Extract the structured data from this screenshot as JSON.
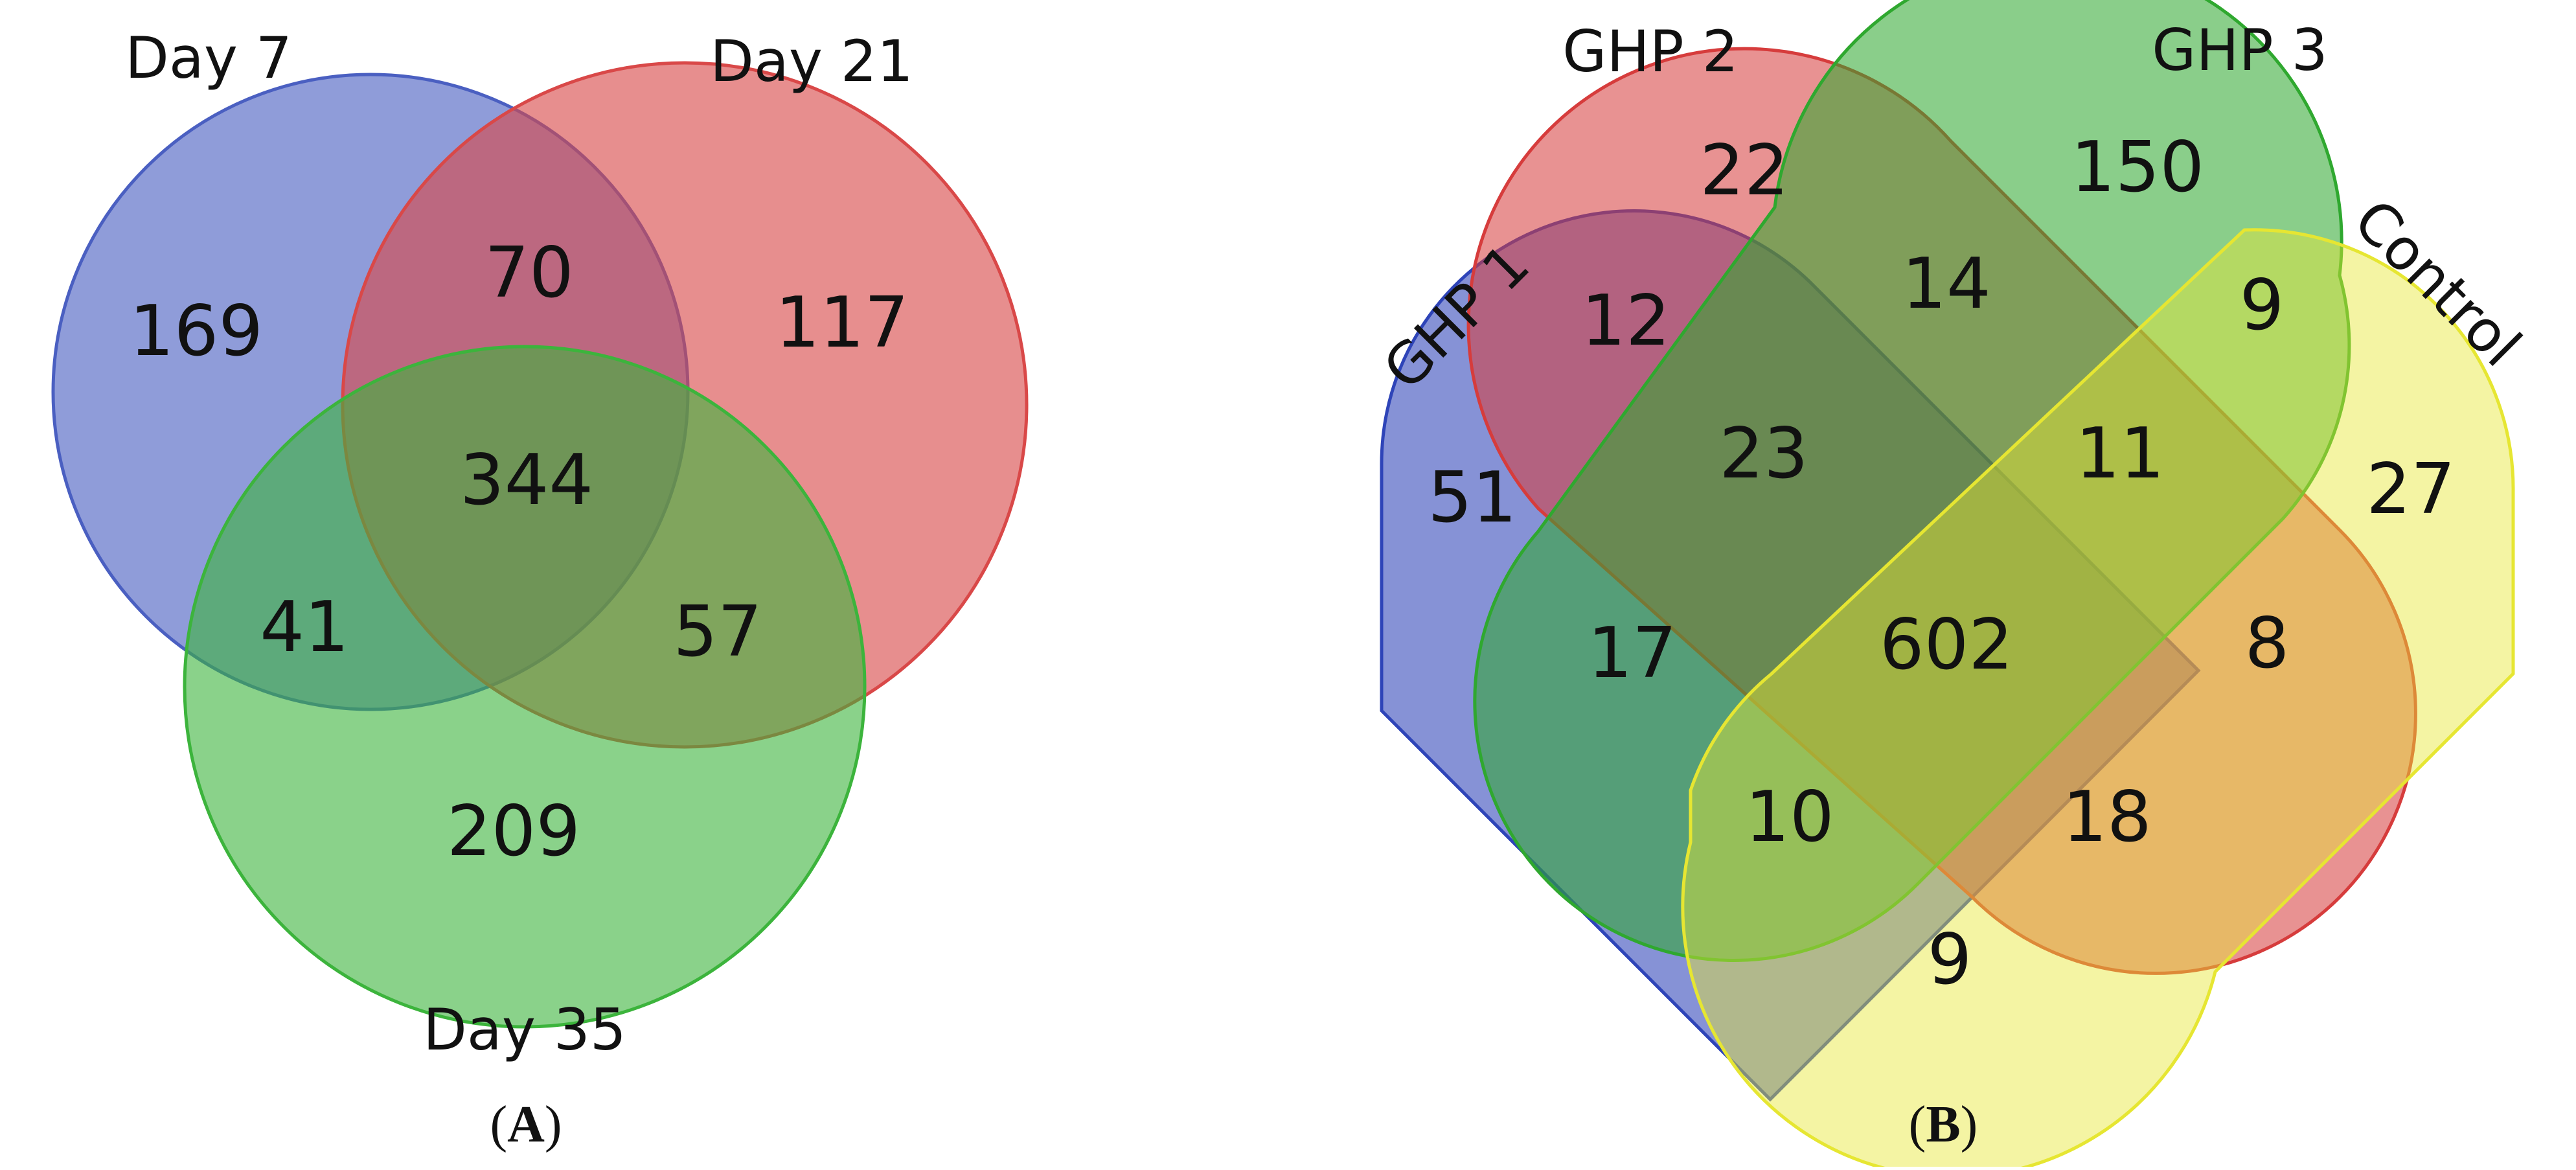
{
  "panel_a": {
    "caption_letter": "A",
    "sets": [
      {
        "name": "Day 7",
        "color": "#4a5fc1"
      },
      {
        "name": "Day 21",
        "color": "#d94848"
      },
      {
        "name": "Day 35",
        "color": "#3cb43c"
      }
    ],
    "regions": {
      "day7_only": "169",
      "day21_only": "117",
      "day35_only": "209",
      "day7_day21": "70",
      "day7_day35": "41",
      "day21_day35": "57",
      "all_three": "344"
    }
  },
  "panel_b": {
    "caption_letter": "B",
    "sets": [
      {
        "name": "GHP 1",
        "color": "#2e44b8"
      },
      {
        "name": "GHP 2",
        "color": "#d63c3c"
      },
      {
        "name": "GHP 3",
        "color": "#2fa82f"
      },
      {
        "name": "Control",
        "color": "#e6e632"
      }
    ],
    "regions": {
      "ghp1_only": "51",
      "ghp2_only": "22",
      "ghp3_only": "150",
      "control_only": "27",
      "ghp1_ghp2": "12",
      "ghp2_ghp3": "14",
      "ghp3_control": "9",
      "ghp1_ghp2_ghp3": "23",
      "ghp2_ghp3_control": "11",
      "ghp1_ghp3": "17",
      "ghp2_control": "8",
      "all_four": "602",
      "ghp1_ghp3_control": "10",
      "ghp1_ghp2_control": "18",
      "ghp1_control": "9"
    }
  }
}
